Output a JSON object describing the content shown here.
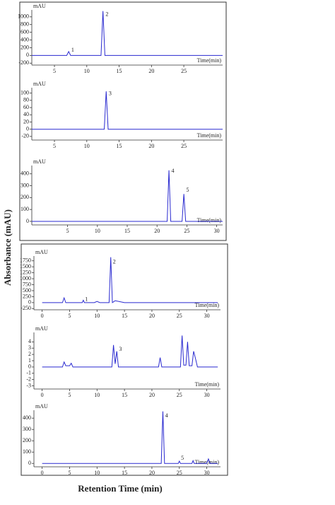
{
  "y_label": "Absorbance (mAU)",
  "x_label": "Retention Time (min)",
  "chart_data": [
    {
      "type": "line",
      "ylabel": "mAU",
      "xlabel": "Time(min)",
      "color": "#2a2ad0",
      "xlim": [
        1.5,
        31
      ],
      "xticks": [
        5,
        10,
        15,
        20,
        25
      ],
      "ylim": [
        -250,
        1180
      ],
      "yticks": [
        -200,
        0,
        200,
        400,
        600,
        800,
        1000
      ],
      "x": [
        1.5,
        5,
        6.9,
        7.2,
        7.5,
        10,
        12.2,
        12.5,
        12.8,
        15,
        20,
        25,
        30,
        31
      ],
      "series": [
        {
          "color": "#2a2ad0",
          "values": [
            0,
            0,
            0,
            100,
            0,
            0,
            0,
            1150,
            0,
            0,
            0,
            0,
            0,
            0
          ]
        }
      ],
      "annotations": [
        {
          "text": "1",
          "x": 7.6,
          "y": 130
        },
        {
          "text": "2",
          "x": 12.9,
          "y": 1060
        }
      ]
    },
    {
      "type": "line",
      "ylabel": "mAU",
      "xlabel": "Time(min)",
      "color": "#2a2ad0",
      "xlim": [
        1.5,
        31
      ],
      "xticks": [
        5,
        10,
        15,
        20,
        25
      ],
      "ylim": [
        -30,
        115
      ],
      "yticks": [
        -20,
        0,
        20,
        40,
        60,
        80,
        100
      ],
      "x": [
        1.5,
        10,
        12.7,
        13,
        13.3,
        20,
        31
      ],
      "series": [
        {
          "color": "#2a2ad0",
          "values": [
            0,
            0,
            0,
            105,
            0,
            0,
            0
          ]
        }
      ],
      "annotations": [
        {
          "text": "3",
          "x": 13.4,
          "y": 98
        }
      ]
    },
    {
      "type": "line",
      "ylabel": "mAU",
      "xlabel": "Time(min)",
      "color": "#2a2ad0",
      "xlim": [
        -1,
        31
      ],
      "xticks": [
        5,
        10,
        15,
        20,
        25,
        30
      ],
      "ylim": [
        -30,
        470
      ],
      "yticks": [
        0,
        100,
        200,
        300,
        400
      ],
      "x": [
        -1,
        10,
        21.7,
        22,
        22.3,
        24.2,
        24.5,
        24.8,
        31
      ],
      "series": [
        {
          "color": "#2a2ad0",
          "values": [
            0,
            0,
            0,
            430,
            0,
            0,
            230,
            0,
            0
          ]
        }
      ],
      "annotations": [
        {
          "text": "4",
          "x": 22.4,
          "y": 420
        },
        {
          "text": "5",
          "x": 24.9,
          "y": 260
        }
      ]
    },
    {
      "type": "line",
      "ylabel": "mAU",
      "xlabel": "Time(min)",
      "color": "#2a2ad0",
      "xlim": [
        -1.5,
        32.5
      ],
      "xticks": [
        0,
        5,
        10,
        15,
        20,
        25,
        30
      ],
      "ylim": [
        -300,
        1950
      ],
      "yticks": [
        -250,
        0,
        250,
        500,
        750,
        1000,
        1250,
        1500,
        1750
      ],
      "x": [
        0,
        3.7,
        4,
        4.3,
        7.3,
        7.5,
        7.7,
        9.5,
        10,
        10.5,
        12.2,
        12.5,
        12.8,
        13.3,
        15,
        20,
        25,
        30,
        32
      ],
      "series": [
        {
          "color": "#2a2ad0",
          "values": [
            0,
            0,
            200,
            0,
            0,
            100,
            0,
            0,
            50,
            0,
            0,
            1900,
            0,
            80,
            0,
            0,
            0,
            0,
            0
          ]
        }
      ],
      "annotations": [
        {
          "text": "1",
          "x": 7.8,
          "y": 130
        },
        {
          "text": "2",
          "x": 12.9,
          "y": 1700
        }
      ]
    },
    {
      "type": "line",
      "ylabel": "mAU",
      "xlabel": "Time(min)",
      "color": "#2a2ad0",
      "xlim": [
        -1.5,
        32.5
      ],
      "xticks": [
        0,
        5,
        10,
        15,
        20,
        25,
        30
      ],
      "ylim": [
        -3.5,
        5.5
      ],
      "yticks": [
        -3,
        -2,
        -1,
        0,
        1,
        2,
        3,
        4
      ],
      "x": [
        0,
        3.7,
        4,
        4.3,
        5,
        5.3,
        5.6,
        12.7,
        13,
        13.3,
        13.6,
        13.9,
        21.2,
        21.5,
        21.8,
        25.2,
        25.5,
        25.8,
        26.2,
        26.5,
        26.8,
        27.3,
        27.6,
        27.9,
        28.3,
        30,
        32
      ],
      "series": [
        {
          "color": "#2a2ad0",
          "values": [
            0,
            0,
            0.8,
            0.2,
            0.2,
            0.6,
            0,
            0,
            3.5,
            0.5,
            2.5,
            0,
            0,
            1.5,
            0,
            0,
            5,
            0.3,
            0.3,
            4,
            0.2,
            0.2,
            2.5,
            1.5,
            0,
            0,
            0
          ]
        }
      ],
      "annotations": [
        {
          "text": "3",
          "x": 14,
          "y": 2.8
        }
      ]
    },
    {
      "type": "line",
      "ylabel": "mAU",
      "xlabel": "Time(min)",
      "color": "#2a2ad0",
      "xlim": [
        -1.5,
        32.5
      ],
      "xticks": [
        0,
        5,
        10,
        15,
        20,
        25,
        30
      ],
      "ylim": [
        -30,
        470
      ],
      "yticks": [
        0,
        100,
        200,
        300,
        400
      ],
      "x": [
        0,
        20,
        21.7,
        22,
        22.3,
        24.8,
        25,
        25.2,
        27.3,
        27.5,
        27.7,
        30,
        30.3,
        30.6,
        32
      ],
      "series": [
        {
          "color": "#2a2ad0",
          "values": [
            0,
            0,
            0,
            460,
            0,
            0,
            20,
            0,
            0,
            25,
            0,
            0,
            40,
            0,
            0
          ]
        }
      ],
      "annotations": [
        {
          "text": "4",
          "x": 22.4,
          "y": 420
        },
        {
          "text": "5",
          "x": 25.3,
          "y": 45
        }
      ]
    }
  ]
}
